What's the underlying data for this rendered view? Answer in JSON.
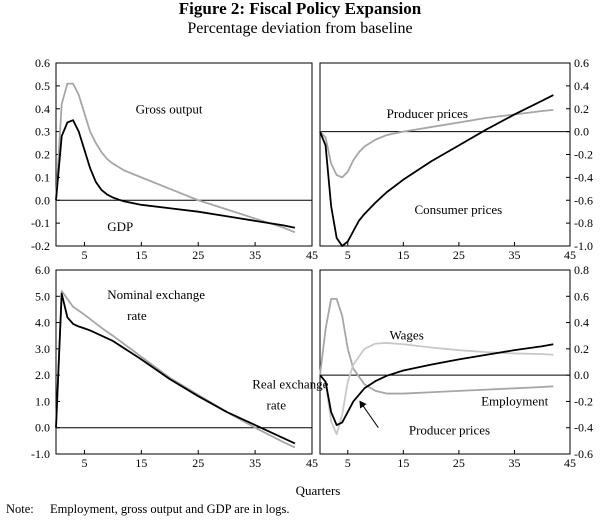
{
  "title": "Figure 2: Fiscal Policy Expansion",
  "subtitle": "Percentage deviation from baseline",
  "x_axis_label": "Quarters",
  "note_label": "Note:",
  "note_text": "Employment, gross output and GDP are in logs.",
  "colors": {
    "dark": "#000000",
    "mid": "#a6a6a6",
    "light": "#c8c8c8"
  },
  "chart_data": [
    {
      "type": "line",
      "panel": "top-left",
      "xlim": [
        0,
        45
      ],
      "ylim": [
        -0.2,
        0.6
      ],
      "xticks": [
        5,
        15,
        25,
        35,
        45
      ],
      "yticks": [
        -0.2,
        -0.1,
        0.0,
        0.1,
        0.2,
        0.3,
        0.4,
        0.5,
        0.6
      ],
      "ytick_labels": [
        "-0.2",
        "-0.1",
        "0.0",
        "0.1",
        "0.2",
        "0.3",
        "0.4",
        "0.5",
        "0.6"
      ],
      "y_axis_side": "left",
      "series": [
        {
          "name": "Gross output",
          "color": "mid",
          "x": [
            0,
            1,
            2,
            3,
            4,
            5,
            6,
            7,
            8,
            9,
            10,
            12,
            15,
            20,
            25,
            30,
            35,
            40,
            42
          ],
          "y": [
            0.0,
            0.42,
            0.51,
            0.51,
            0.46,
            0.38,
            0.3,
            0.25,
            0.21,
            0.18,
            0.16,
            0.13,
            0.1,
            0.05,
            0.0,
            -0.04,
            -0.08,
            -0.12,
            -0.14
          ]
        },
        {
          "name": "GDP",
          "color": "dark",
          "x": [
            0,
            1,
            2,
            3,
            4,
            5,
            6,
            7,
            8,
            9,
            10,
            11,
            12,
            15,
            20,
            25,
            30,
            35,
            40,
            42
          ],
          "y": [
            0.0,
            0.28,
            0.34,
            0.35,
            0.3,
            0.22,
            0.14,
            0.08,
            0.045,
            0.025,
            0.012,
            0.003,
            -0.005,
            -0.02,
            -0.035,
            -0.05,
            -0.07,
            -0.09,
            -0.11,
            -0.12
          ]
        }
      ],
      "labels": [
        {
          "text": "Gross output",
          "x": 14,
          "y": 0.38
        },
        {
          "text": "GDP",
          "x": 9,
          "y": -0.135
        }
      ]
    },
    {
      "type": "line",
      "panel": "top-right",
      "xlim": [
        0,
        45
      ],
      "ylim": [
        -1.0,
        0.6
      ],
      "xticks": [
        5,
        15,
        25,
        35,
        45
      ],
      "yticks": [
        -1.0,
        -0.8,
        -0.6,
        -0.4,
        -0.2,
        0.0,
        0.2,
        0.4,
        0.6
      ],
      "ytick_labels": [
        "-1.0",
        "-0.8",
        "-0.6",
        "-0.4",
        "-0.2",
        "0.0",
        "0.2",
        "0.4",
        "0.6"
      ],
      "y_axis_side": "right",
      "series": [
        {
          "name": "Producer prices",
          "color": "mid",
          "x": [
            0,
            1,
            2,
            3,
            4,
            5,
            6,
            7,
            8,
            10,
            12,
            15,
            20,
            25,
            30,
            35,
            40,
            42
          ],
          "y": [
            0.0,
            -0.05,
            -0.28,
            -0.38,
            -0.4,
            -0.35,
            -0.25,
            -0.18,
            -0.13,
            -0.07,
            -0.03,
            0.0,
            0.04,
            0.08,
            0.12,
            0.15,
            0.18,
            0.19
          ]
        },
        {
          "name": "Consumer prices",
          "color": "dark",
          "x": [
            0,
            1,
            2,
            3,
            4,
            5,
            6,
            7,
            8,
            10,
            12,
            15,
            20,
            25,
            30,
            35,
            40,
            42
          ],
          "y": [
            0.0,
            -0.12,
            -0.65,
            -0.93,
            -1.0,
            -0.96,
            -0.87,
            -0.78,
            -0.72,
            -0.62,
            -0.53,
            -0.42,
            -0.26,
            -0.12,
            0.02,
            0.15,
            0.27,
            0.32
          ]
        }
      ],
      "labels": [
        {
          "text": "Producer prices",
          "x": 12,
          "y": 0.12
        },
        {
          "text": "Consumer prices",
          "x": 17,
          "y": -0.72
        }
      ]
    },
    {
      "type": "line",
      "panel": "bottom-left",
      "xlim": [
        0,
        45
      ],
      "ylim": [
        -1.0,
        6.0
      ],
      "xticks": [
        5,
        15,
        25,
        35,
        45
      ],
      "yticks": [
        -1,
        0,
        1,
        2,
        3,
        4,
        5,
        6
      ],
      "ytick_labels": [
        "-1.0",
        "0.0",
        "1.0",
        "2.0",
        "3.0",
        "4.0",
        "5.0",
        "6.0"
      ],
      "y_axis_side": "left",
      "series": [
        {
          "name": "Real exchange rate",
          "color": "mid",
          "x": [
            0,
            1,
            2,
            3,
            5,
            8,
            10,
            15,
            20,
            25,
            30,
            35,
            40,
            42
          ],
          "y": [
            0.0,
            5.2,
            4.9,
            4.6,
            4.3,
            3.8,
            3.5,
            2.7,
            1.9,
            1.25,
            0.6,
            0.0,
            -0.55,
            -0.75
          ]
        },
        {
          "name": "Nominal exchange rate",
          "color": "dark",
          "x": [
            0,
            1,
            2,
            3,
            4,
            5,
            6,
            8,
            10,
            15,
            20,
            25,
            30,
            35,
            40,
            42
          ],
          "y": [
            0.0,
            5.1,
            4.2,
            3.95,
            3.85,
            3.78,
            3.7,
            3.5,
            3.3,
            2.6,
            1.85,
            1.2,
            0.6,
            0.1,
            -0.4,
            -0.6
          ]
        }
      ],
      "labels": [
        {
          "text": "Nominal exchange",
          "x": 9,
          "y": 4.9
        },
        {
          "text": "rate",
          "x": 12.5,
          "y": 4.1
        },
        {
          "text": "Real exchange",
          "x": 34.5,
          "y": 1.5
        },
        {
          "text": "rate",
          "x": 37,
          "y": 0.7
        }
      ]
    },
    {
      "type": "line",
      "panel": "bottom-right",
      "xlim": [
        0,
        45
      ],
      "ylim": [
        -0.6,
        0.8
      ],
      "xticks": [
        5,
        15,
        25,
        35,
        45
      ],
      "yticks": [
        -0.6,
        -0.4,
        -0.2,
        0.0,
        0.2,
        0.4,
        0.6,
        0.8
      ],
      "ytick_labels": [
        "-0.6",
        "-0.4",
        "-0.2",
        "0.0",
        "0.2",
        "0.4",
        "0.6",
        "0.8"
      ],
      "y_axis_side": "right",
      "series": [
        {
          "name": "Employment",
          "color": "mid",
          "x": [
            0,
            1,
            2,
            3,
            4,
            5,
            6,
            8,
            10,
            12,
            15,
            20,
            25,
            30,
            35,
            40,
            42
          ],
          "y": [
            0.0,
            0.35,
            0.58,
            0.58,
            0.45,
            0.2,
            0.05,
            -0.07,
            -0.12,
            -0.14,
            -0.14,
            -0.13,
            -0.12,
            -0.11,
            -0.1,
            -0.09,
            -0.085
          ]
        },
        {
          "name": "Wages",
          "color": "light",
          "x": [
            0,
            1,
            2,
            3,
            4,
            5,
            6,
            8,
            10,
            12,
            15,
            20,
            25,
            30,
            35,
            40,
            42
          ],
          "y": [
            0.0,
            -0.05,
            -0.35,
            -0.45,
            -0.3,
            -0.05,
            0.08,
            0.2,
            0.24,
            0.245,
            0.235,
            0.21,
            0.19,
            0.175,
            0.165,
            0.16,
            0.155
          ]
        },
        {
          "name": "Producer prices",
          "color": "dark",
          "x": [
            0,
            1,
            2,
            3,
            4,
            5,
            6,
            8,
            10,
            12,
            15,
            20,
            25,
            30,
            35,
            40,
            42
          ],
          "y": [
            0.0,
            -0.05,
            -0.28,
            -0.38,
            -0.36,
            -0.28,
            -0.2,
            -0.1,
            -0.045,
            -0.005,
            0.035,
            0.08,
            0.12,
            0.155,
            0.19,
            0.22,
            0.235
          ]
        }
      ],
      "labels": [
        {
          "text": "Wages",
          "x": 12.5,
          "y": 0.27
        },
        {
          "text": "Employment",
          "x": 29,
          "y": -0.23
        },
        {
          "text": "Producer prices",
          "x": 16,
          "y": -0.45
        }
      ],
      "arrow": {
        "from": [
          10.5,
          -0.4
        ],
        "to": [
          7.2,
          -0.2
        ]
      }
    }
  ]
}
